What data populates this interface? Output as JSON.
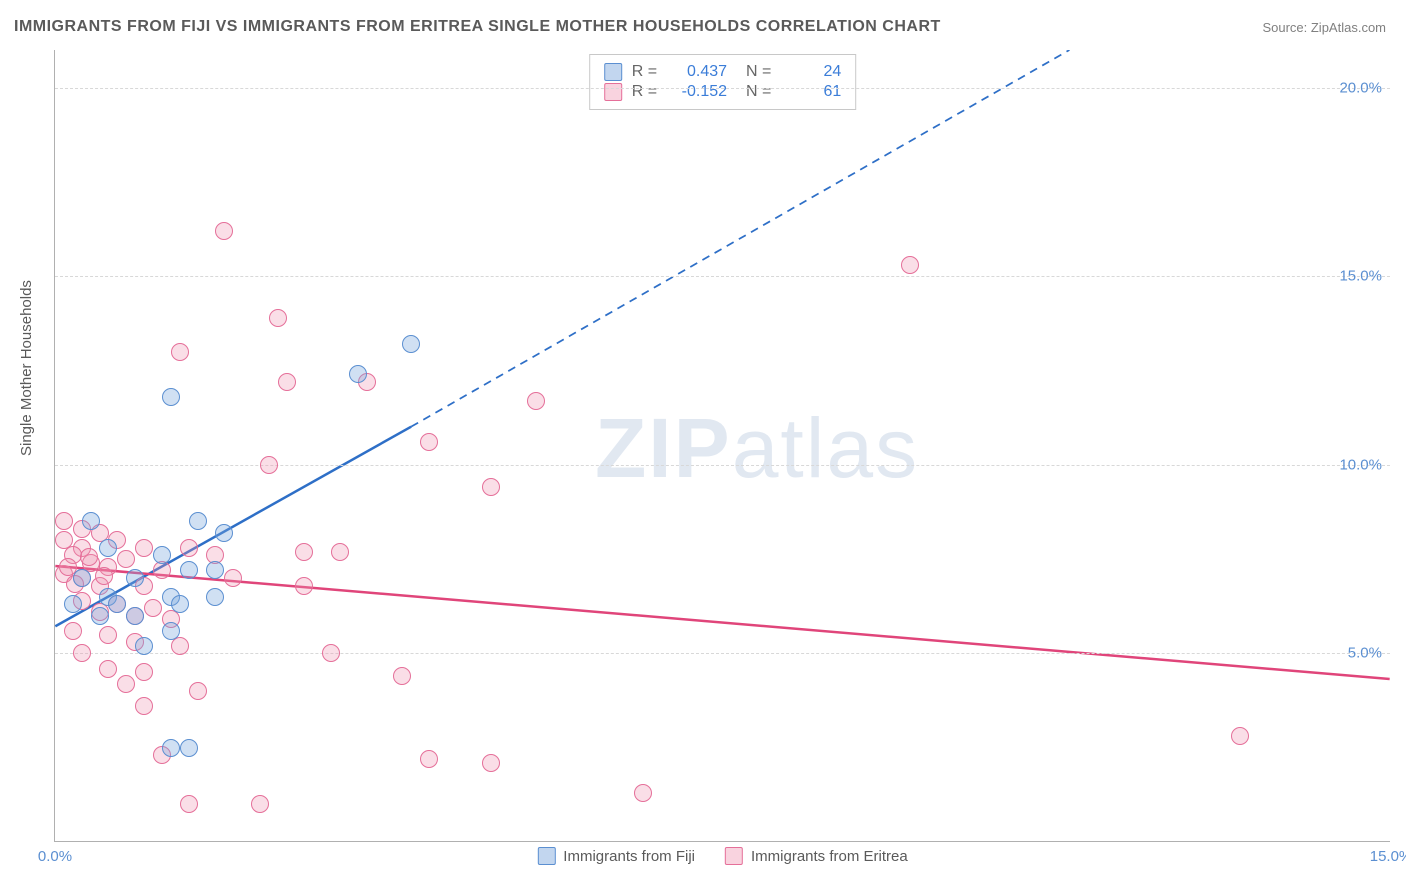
{
  "title": "IMMIGRANTS FROM FIJI VS IMMIGRANTS FROM ERITREA SINGLE MOTHER HOUSEHOLDS CORRELATION CHART",
  "source": "Source: ZipAtlas.com",
  "ylabel": "Single Mother Households",
  "watermark_bold": "ZIP",
  "watermark_light": "atlas",
  "chart": {
    "type": "scatter",
    "xlim": [
      0,
      15
    ],
    "ylim": [
      0,
      21
    ],
    "xticks": [
      0,
      15
    ],
    "xtick_labels": [
      "0.0%",
      "15.0%"
    ],
    "yticks": [
      5,
      10,
      15,
      20
    ],
    "ytick_labels": [
      "5.0%",
      "10.0%",
      "15.0%",
      "20.0%"
    ],
    "background_color": "#ffffff",
    "grid_color": "#d8d8d8",
    "series": [
      {
        "name": "Immigrants from Fiji",
        "color_fill": "rgba(120,165,220,0.35)",
        "color_stroke": "#5b8fd1",
        "trend_color": "#2e6fc7",
        "trend_width": 2.5,
        "R": "0.437",
        "N": "24",
        "trend": {
          "x1": 0,
          "y1": 5.7,
          "x2_solid": 4.0,
          "y2_solid": 11.0,
          "x2_dash": 11.4,
          "y2_dash": 21.0
        },
        "points": [
          [
            4.0,
            13.2
          ],
          [
            3.4,
            12.4
          ],
          [
            1.3,
            11.8
          ],
          [
            0.4,
            8.5
          ],
          [
            1.6,
            8.5
          ],
          [
            0.6,
            7.8
          ],
          [
            1.2,
            7.6
          ],
          [
            1.5,
            7.2
          ],
          [
            1.8,
            7.2
          ],
          [
            0.3,
            7.0
          ],
          [
            0.9,
            7.0
          ],
          [
            0.6,
            6.5
          ],
          [
            1.3,
            6.5
          ],
          [
            1.8,
            6.5
          ],
          [
            0.2,
            6.3
          ],
          [
            0.7,
            6.3
          ],
          [
            1.4,
            6.3
          ],
          [
            0.5,
            6.0
          ],
          [
            0.9,
            6.0
          ],
          [
            1.3,
            5.6
          ],
          [
            1.0,
            5.2
          ],
          [
            1.3,
            2.5
          ],
          [
            1.5,
            2.5
          ],
          [
            1.9,
            8.2
          ]
        ]
      },
      {
        "name": "Immigrants from Eritrea",
        "color_fill": "rgba(240,145,175,0.30)",
        "color_stroke": "#e56f99",
        "trend_color": "#e0457a",
        "trend_width": 2.5,
        "R": "-0.152",
        "N": "61",
        "trend": {
          "x1": 0,
          "y1": 7.3,
          "x2_solid": 15.0,
          "y2_solid": 4.3,
          "x2_dash": 15.0,
          "y2_dash": 4.3
        },
        "points": [
          [
            1.9,
            16.2
          ],
          [
            9.6,
            15.3
          ],
          [
            2.5,
            13.9
          ],
          [
            1.4,
            13.0
          ],
          [
            2.6,
            12.2
          ],
          [
            5.4,
            11.7
          ],
          [
            3.5,
            12.2
          ],
          [
            4.2,
            10.6
          ],
          [
            2.4,
            10.0
          ],
          [
            4.9,
            9.4
          ],
          [
            0.1,
            8.5
          ],
          [
            0.3,
            8.3
          ],
          [
            0.1,
            8.0
          ],
          [
            0.3,
            7.8
          ],
          [
            0.5,
            8.2
          ],
          [
            0.7,
            8.0
          ],
          [
            0.2,
            7.6
          ],
          [
            0.4,
            7.4
          ],
          [
            0.6,
            7.3
          ],
          [
            0.8,
            7.5
          ],
          [
            0.1,
            7.1
          ],
          [
            0.3,
            7.0
          ],
          [
            0.5,
            6.8
          ],
          [
            1.0,
            7.8
          ],
          [
            1.2,
            7.2
          ],
          [
            1.0,
            6.8
          ],
          [
            1.5,
            7.8
          ],
          [
            1.8,
            7.6
          ],
          [
            2.0,
            7.0
          ],
          [
            2.8,
            7.7
          ],
          [
            3.2,
            7.7
          ],
          [
            2.8,
            6.8
          ],
          [
            0.3,
            6.4
          ],
          [
            0.5,
            6.1
          ],
          [
            0.7,
            6.3
          ],
          [
            0.9,
            6.0
          ],
          [
            1.1,
            6.2
          ],
          [
            1.3,
            5.9
          ],
          [
            0.2,
            5.6
          ],
          [
            0.6,
            5.5
          ],
          [
            0.9,
            5.3
          ],
          [
            1.4,
            5.2
          ],
          [
            0.3,
            5.0
          ],
          [
            0.6,
            4.6
          ],
          [
            1.0,
            4.5
          ],
          [
            0.8,
            4.2
          ],
          [
            1.6,
            4.0
          ],
          [
            1.0,
            3.6
          ],
          [
            3.1,
            5.0
          ],
          [
            3.9,
            4.4
          ],
          [
            1.2,
            2.3
          ],
          [
            4.2,
            2.2
          ],
          [
            4.9,
            2.1
          ],
          [
            6.6,
            1.3
          ],
          [
            1.5,
            1.0
          ],
          [
            2.3,
            1.0
          ],
          [
            13.3,
            2.8
          ],
          [
            0.15,
            7.3
          ],
          [
            0.38,
            7.55
          ],
          [
            0.55,
            7.05
          ],
          [
            0.22,
            6.85
          ]
        ]
      }
    ],
    "legend_labels": [
      "Immigrants from Fiji",
      "Immigrants from Eritrea"
    ]
  }
}
